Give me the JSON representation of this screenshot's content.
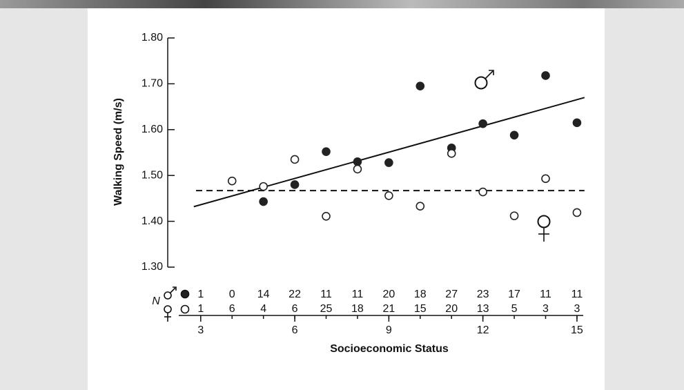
{
  "chart_data": {
    "type": "scatter",
    "ylabel": "Walking Speed (m/s)",
    "xlabel": "Socioeconomic Status",
    "xlim": [
      2.3,
      15.2
    ],
    "xticks": [
      3,
      6,
      9,
      12,
      15
    ],
    "ylim": [
      1.3,
      1.8
    ],
    "yticks": [
      {
        "value": 1.3,
        "label": "1.30"
      },
      {
        "value": 1.4,
        "label": "1.40"
      },
      {
        "value": 1.5,
        "label": "1.50"
      },
      {
        "value": 1.6,
        "label": "1.60"
      },
      {
        "value": 1.7,
        "label": "1.70"
      },
      {
        "value": 1.8,
        "label": "1.80"
      }
    ],
    "series": [
      {
        "marker": "filled",
        "color": "#222222",
        "x": [
          5,
          6,
          7,
          8,
          9,
          10,
          11,
          12,
          13,
          14,
          15
        ],
        "values": [
          1.443,
          1.48,
          1.552,
          1.53,
          1.528,
          1.695,
          1.56,
          1.613,
          1.588,
          1.718,
          1.615
        ]
      },
      {
        "marker": "open",
        "color": "#222222",
        "x": [
          4,
          5,
          6,
          7,
          8,
          9,
          10,
          11,
          12,
          13,
          14,
          15
        ],
        "values": [
          1.488,
          1.476,
          1.535,
          1.411,
          1.514,
          1.456,
          1.433,
          1.548,
          1.464,
          1.412,
          1.493,
          1.419
        ]
      }
    ],
    "lines": [
      {
        "style": "solid",
        "x": [
          2.78,
          15.24
        ],
        "values": [
          1.432,
          1.67
        ]
      },
      {
        "style": "dashed",
        "x": [
          2.85,
          15.24
        ],
        "values": [
          1.467,
          1.467
        ]
      }
    ],
    "counts": {
      "label": "N",
      "x": [
        3,
        4,
        5,
        6,
        7,
        8,
        9,
        10,
        11,
        12,
        13,
        14,
        15
      ],
      "rows": [
        [
          1,
          0,
          14,
          22,
          11,
          11,
          20,
          18,
          27,
          23,
          17,
          11,
          11
        ],
        [
          1,
          6,
          4,
          6,
          25,
          18,
          21,
          15,
          20,
          13,
          5,
          3,
          3
        ]
      ]
    }
  }
}
